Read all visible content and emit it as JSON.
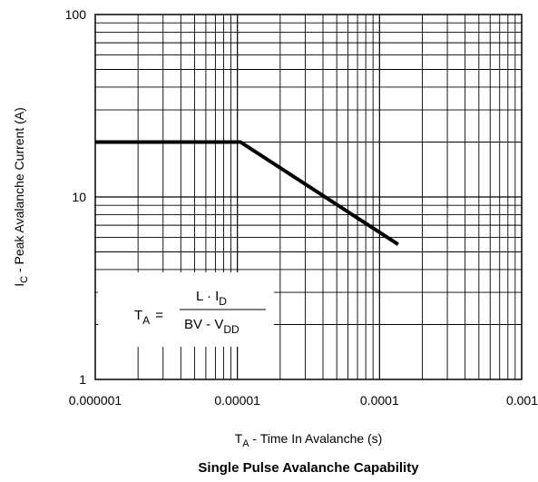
{
  "chart_data": {
    "type": "line",
    "title": "Single Pulse Avalanche Capability",
    "xlabel": {
      "main": "T",
      "sub": "A",
      "rest": " -  Time In Avalanche (s)"
    },
    "ylabel": {
      "main": "I",
      "sub": "C",
      "rest": " -  Peak Avalanche Current (A)"
    },
    "x_scale": "log",
    "y_scale": "log",
    "xlim": [
      1e-06,
      0.001
    ],
    "ylim": [
      1,
      100
    ],
    "x_ticks": [
      {
        "value": 1e-06,
        "label": "0.000001"
      },
      {
        "value": 1e-05,
        "label": "0.00001"
      },
      {
        "value": 0.0001,
        "label": "0.0001"
      },
      {
        "value": 0.001,
        "label": "0.001"
      }
    ],
    "y_ticks": [
      {
        "value": 1,
        "label": "1"
      },
      {
        "value": 10,
        "label": "10"
      },
      {
        "value": 100,
        "label": "100"
      }
    ],
    "grid": true,
    "series": [
      {
        "x": [
          1e-06,
          1.05e-05,
          0.000135
        ],
        "y": [
          20,
          20,
          5.5
        ]
      }
    ],
    "annotation": {
      "lhs_main": "T",
      "lhs_sub": "A",
      "equals": "=",
      "num_main": "L · I",
      "num_sub": "D",
      "den_main": "BV - V",
      "den_sub": "DD"
    }
  }
}
